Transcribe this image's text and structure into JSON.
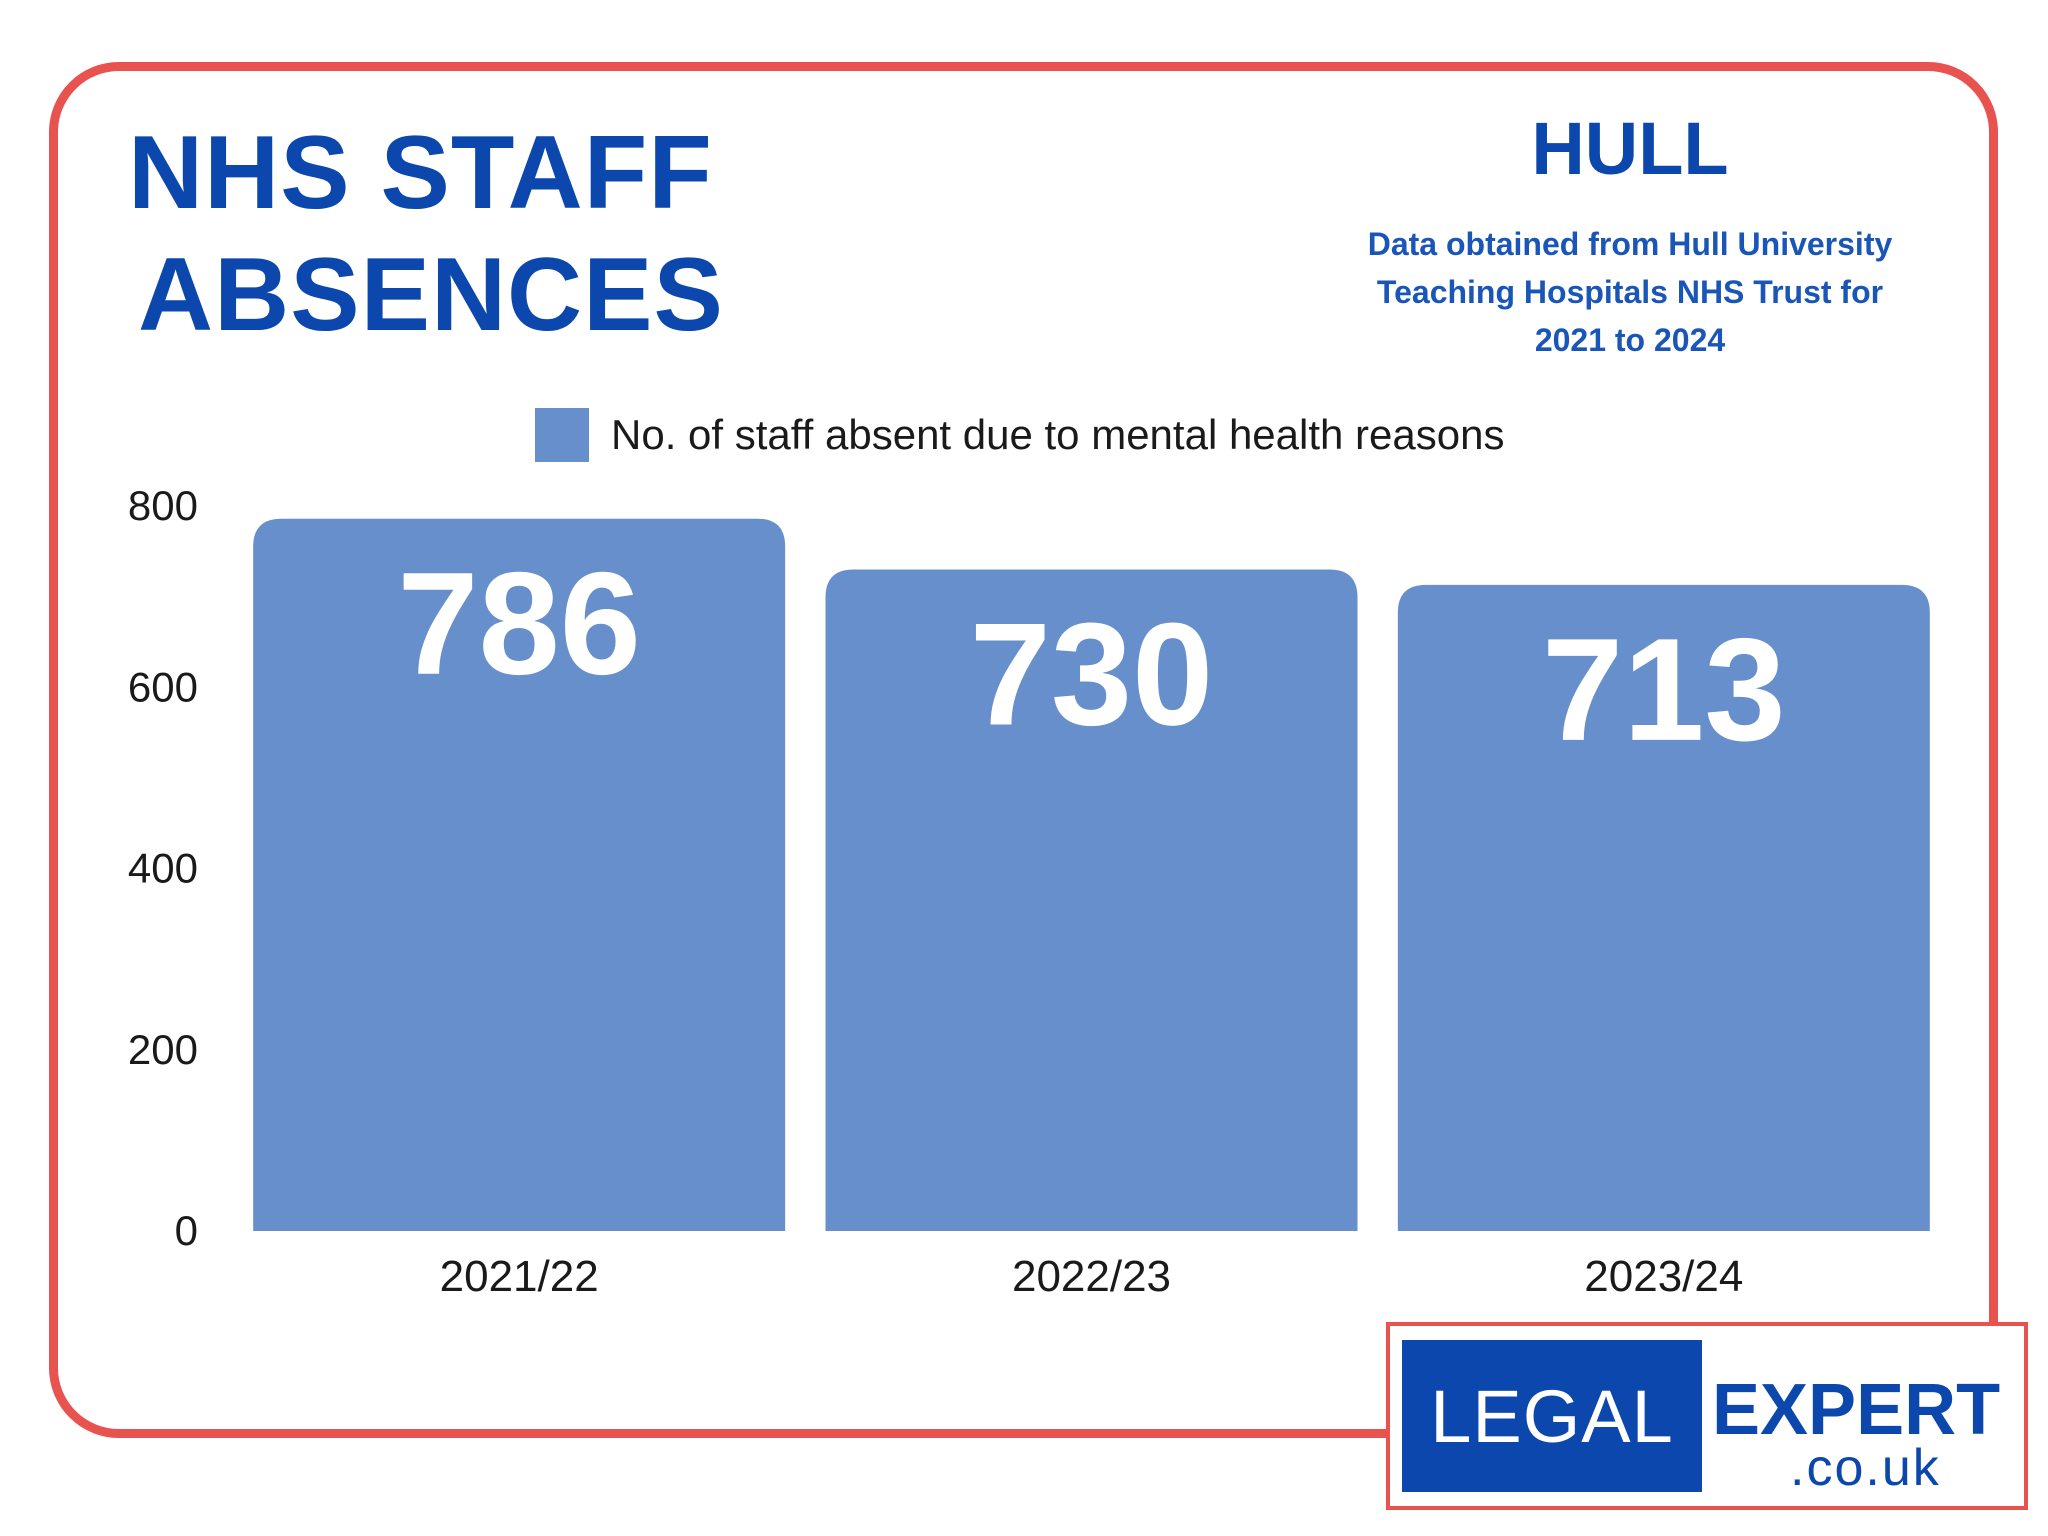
{
  "header": {
    "title_line1": "NHS STAFF",
    "title_line2": "ABSENCES",
    "region": "HULL",
    "source_line1": "Data obtained from Hull University",
    "source_line2": "Teaching Hospitals NHS Trust for",
    "source_line3": "2021 to 2024"
  },
  "colors": {
    "accent": "#0b47ad",
    "frame": "#e8524f",
    "bar": "#668fcb"
  },
  "chart_data": {
    "type": "bar",
    "categories": [
      "2021/22",
      "2022/23",
      "2023/24"
    ],
    "series": [
      {
        "name": "No. of staff absent due to mental health reasons",
        "values": [
          786,
          730,
          713
        ]
      }
    ],
    "value_labels": [
      "786",
      "730",
      "713"
    ],
    "yticks": [
      0,
      200,
      400,
      600,
      800
    ],
    "ylim": [
      0,
      800
    ],
    "grid": false,
    "legend_position": "top"
  },
  "logo": {
    "left": "LEGAL",
    "right": "EXPERT",
    "sub": ".co.uk"
  }
}
